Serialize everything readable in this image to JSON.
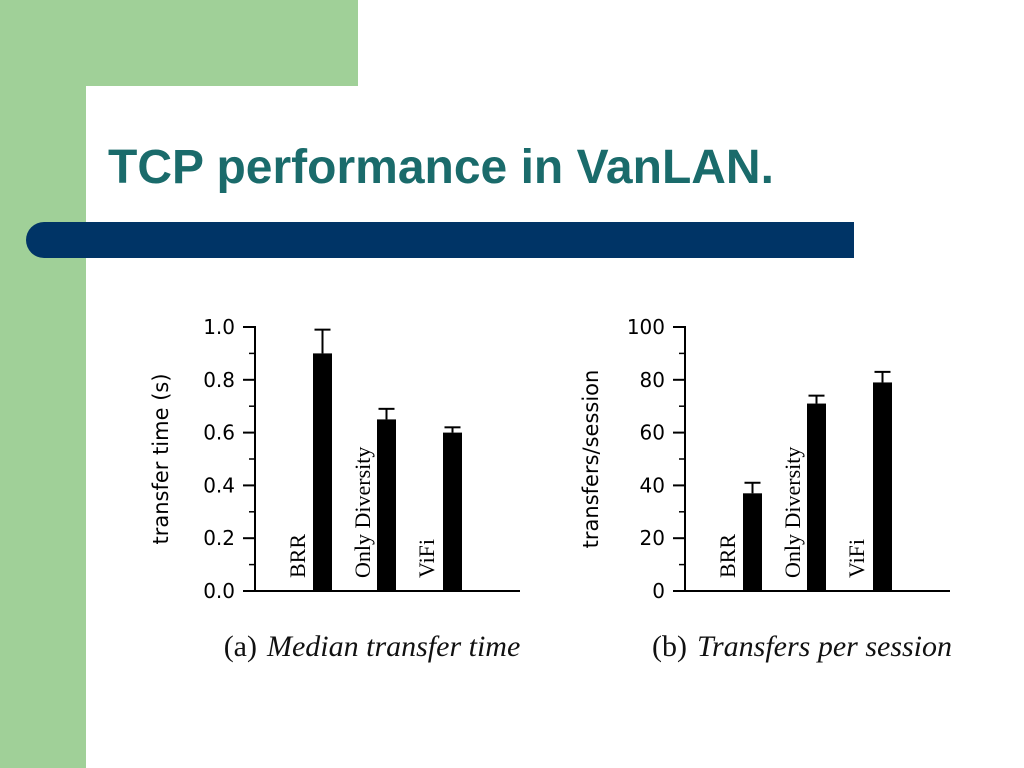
{
  "slide": {
    "title": "TCP performance in VanLAN.",
    "colors": {
      "side_panel": "#a0d098",
      "title_text": "#1a6b6b",
      "title_bar": "#003466",
      "bars": "#000000"
    }
  },
  "chart_data": [
    {
      "type": "bar",
      "ylabel": "transfer time (s)",
      "xlabel": "",
      "ylim": [
        0.0,
        1.0
      ],
      "yticks": [
        "0.0",
        "0.2",
        "0.4",
        "0.6",
        "0.8",
        "1.0"
      ],
      "categories": [
        "BRR",
        "Only Diversity",
        "ViFi"
      ],
      "values": [
        0.9,
        0.65,
        0.6
      ],
      "error_upper": [
        0.99,
        0.69,
        0.62
      ],
      "caption_prefix": "(a)",
      "caption": "Median transfer time",
      "grid": false
    },
    {
      "type": "bar",
      "ylabel": "transfers/session",
      "xlabel": "",
      "ylim": [
        0,
        100
      ],
      "yticks": [
        "0",
        "20",
        "40",
        "60",
        "80",
        "100"
      ],
      "categories": [
        "BRR",
        "Only Diversity",
        "ViFi"
      ],
      "values": [
        37,
        71,
        79
      ],
      "error_upper": [
        41,
        74,
        83
      ],
      "caption_prefix": "(b)",
      "caption": "Transfers per session",
      "grid": false
    }
  ]
}
